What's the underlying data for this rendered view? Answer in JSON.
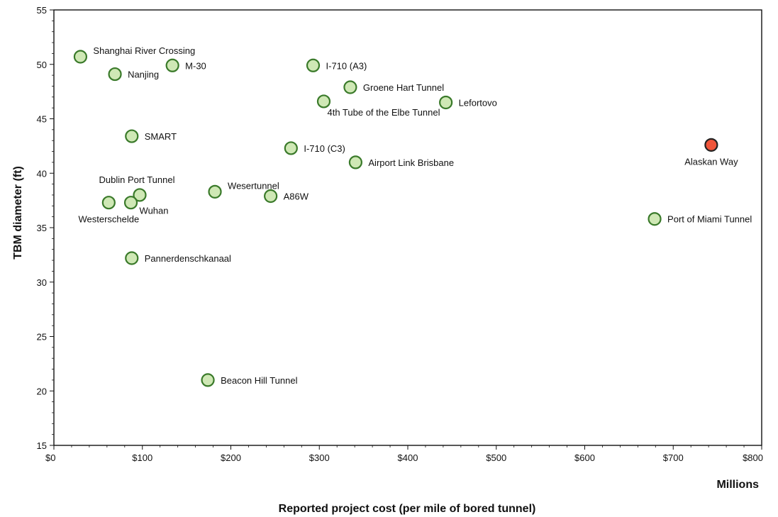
{
  "chart_data": {
    "type": "scatter",
    "xlabel": "Reported project cost (per mile of bored tunnel)",
    "x_unit_label": "Millions",
    "ylabel": "TBM diameter (ft)",
    "xlim": [
      0,
      800
    ],
    "ylim": [
      15,
      55
    ],
    "x_ticks": [
      0,
      100,
      200,
      300,
      400,
      500,
      600,
      700,
      800
    ],
    "x_tick_labels": [
      "$0",
      "$100",
      "$200",
      "$300",
      "$400",
      "$500",
      "$600",
      "$700",
      "$800"
    ],
    "y_ticks": [
      15,
      20,
      25,
      30,
      35,
      40,
      45,
      50,
      55
    ],
    "y_tick_labels": [
      "15",
      "20",
      "25",
      "30",
      "35",
      "40",
      "45",
      "50",
      "55"
    ],
    "grid": false,
    "colors": {
      "default_fill": "#cfe8b5",
      "default_stroke": "#3a7a2a",
      "highlight_fill": "#f0553a",
      "highlight_stroke": "#222222"
    },
    "points": [
      {
        "label": "Shanghai River Crossing",
        "x": 30,
        "y": 50.7,
        "pos": "right-up"
      },
      {
        "label": "Nanjing",
        "x": 69,
        "y": 49.1,
        "pos": "right"
      },
      {
        "label": "M-30",
        "x": 134,
        "y": 49.9,
        "pos": "right"
      },
      {
        "label": "I-710 (A3)",
        "x": 293,
        "y": 49.9,
        "pos": "right"
      },
      {
        "label": "Groene Hart Tunnel",
        "x": 335,
        "y": 47.9,
        "pos": "right"
      },
      {
        "label": "4th Tube of the Elbe Tunnel",
        "x": 305,
        "y": 46.6,
        "pos": "below-right"
      },
      {
        "label": "Lefortovo",
        "x": 443,
        "y": 46.5,
        "pos": "right"
      },
      {
        "label": "SMART",
        "x": 88,
        "y": 43.4,
        "pos": "right"
      },
      {
        "label": "I-710 (C3)",
        "x": 268,
        "y": 42.3,
        "pos": "right"
      },
      {
        "label": "Alaskan Way",
        "x": 743,
        "y": 42.6,
        "pos": "below",
        "highlight": true
      },
      {
        "label": "Airport Link Brisbane",
        "x": 341,
        "y": 41.0,
        "pos": "right"
      },
      {
        "label": "Dublin Port Tunnel",
        "x": 97,
        "y": 38.0,
        "pos": "above"
      },
      {
        "label": "Wesertunnel",
        "x": 182,
        "y": 38.3,
        "pos": "right-up"
      },
      {
        "label": "A86W",
        "x": 245,
        "y": 37.9,
        "pos": "right"
      },
      {
        "label": "Westerschelde",
        "x": 62,
        "y": 37.3,
        "pos": "below"
      },
      {
        "label": "Wuhan",
        "x": 87,
        "y": 37.3,
        "pos": "right-down"
      },
      {
        "label": "Port of Miami Tunnel",
        "x": 679,
        "y": 35.8,
        "pos": "right"
      },
      {
        "label": "Pannerdenschkanaal",
        "x": 88,
        "y": 32.2,
        "pos": "right"
      },
      {
        "label": "Beacon Hill Tunnel",
        "x": 174,
        "y": 21.0,
        "pos": "right"
      }
    ]
  }
}
